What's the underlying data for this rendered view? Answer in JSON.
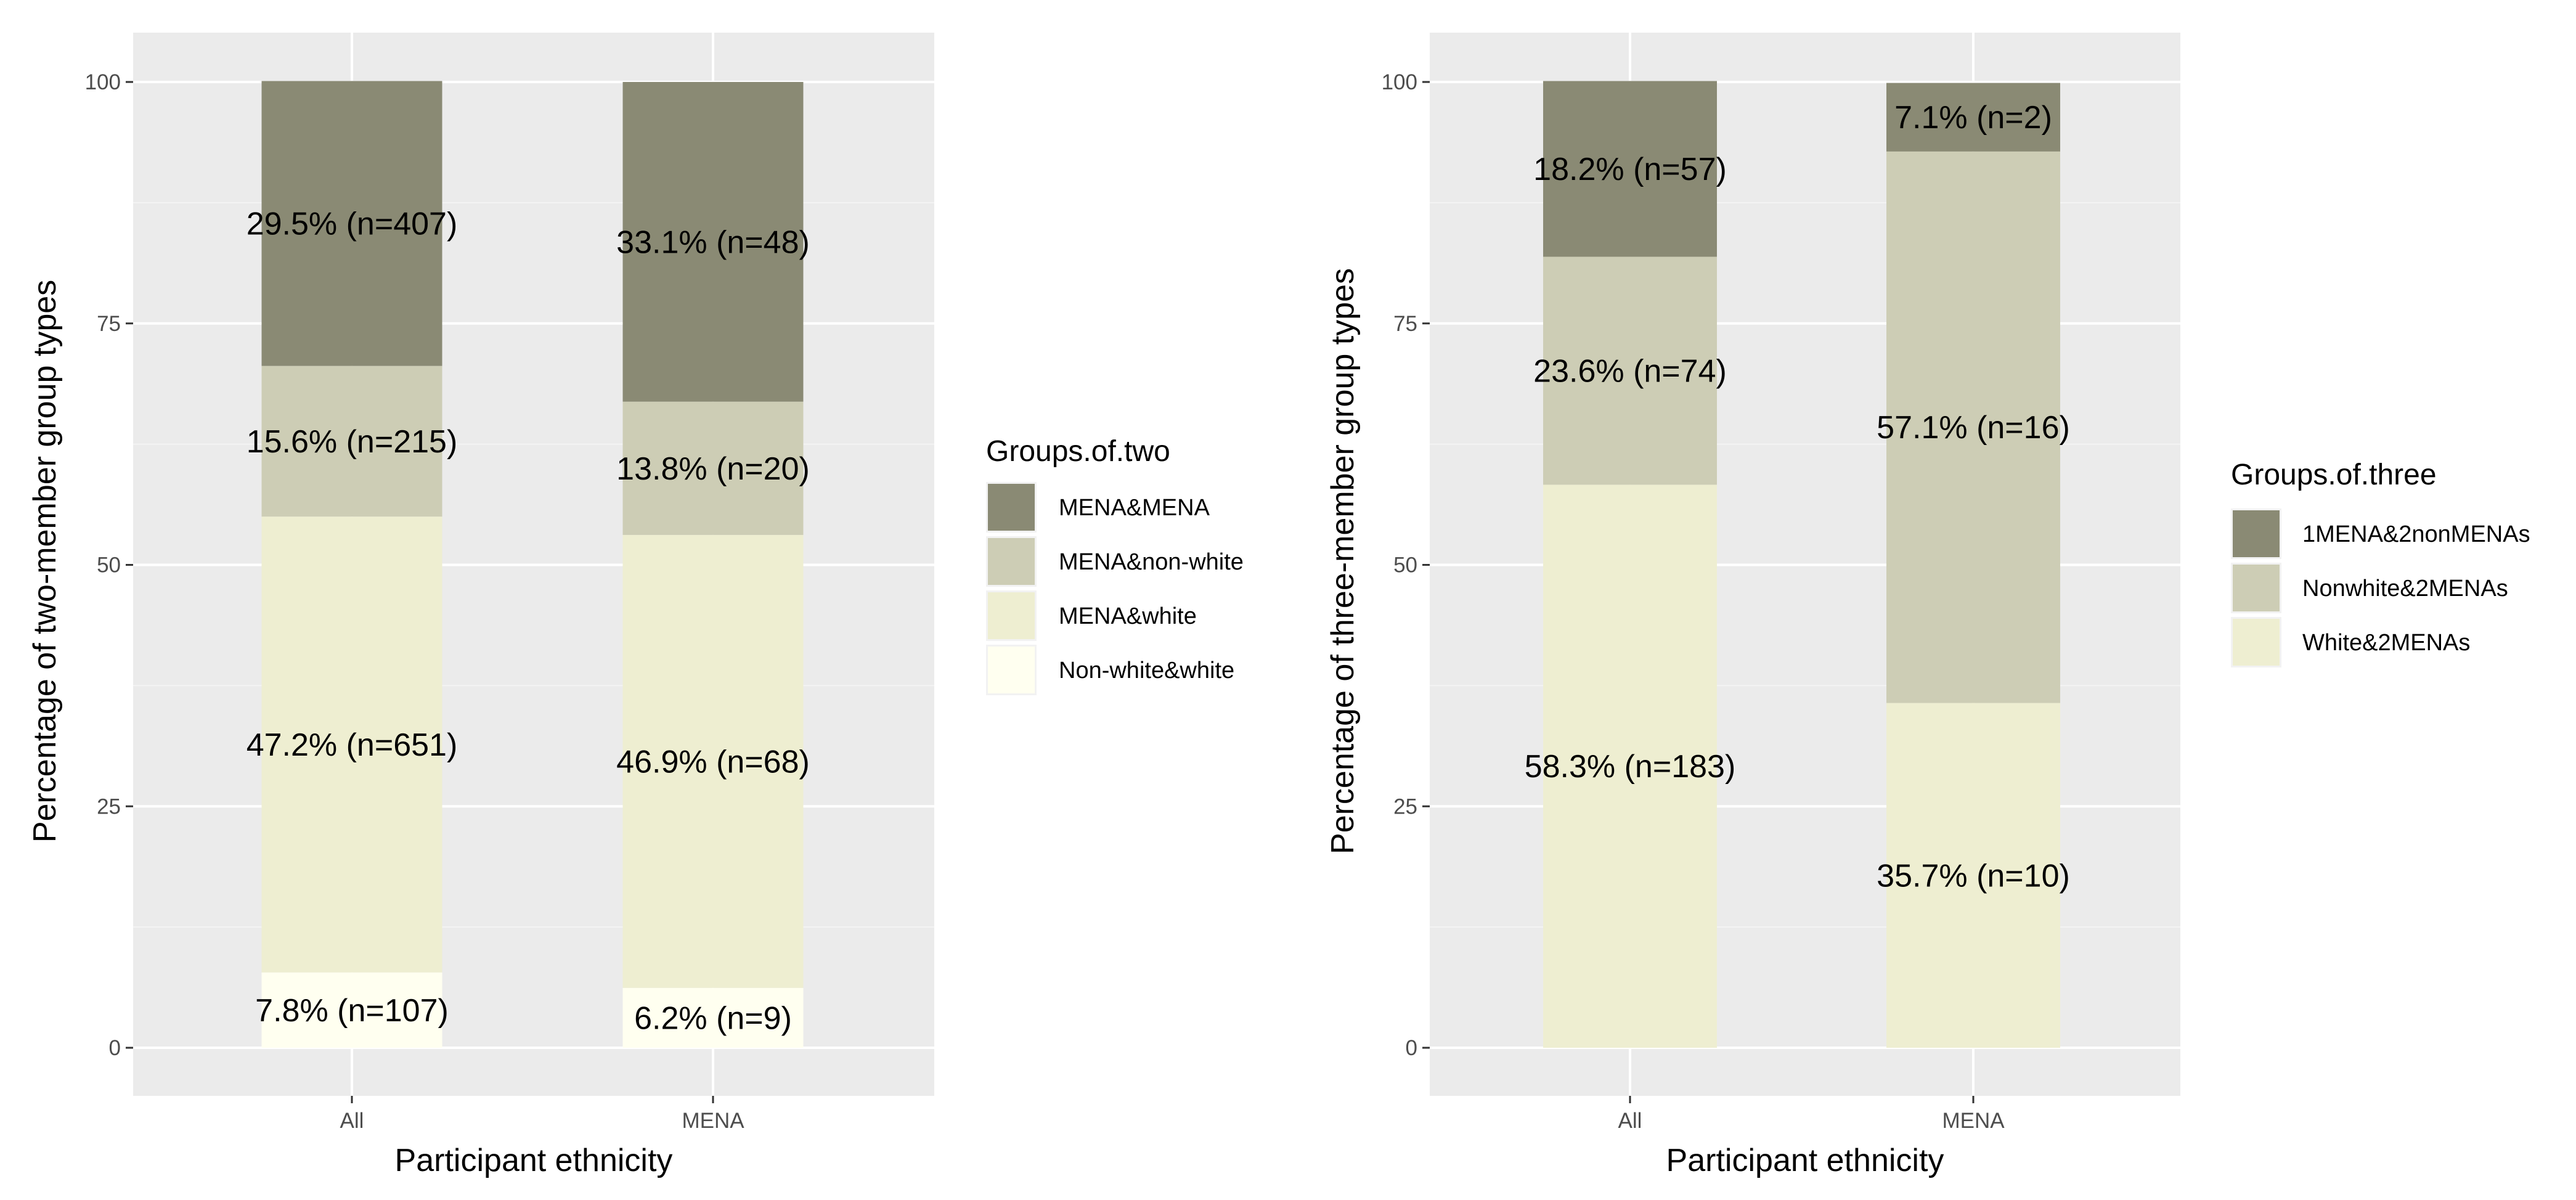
{
  "chart_data": [
    {
      "type": "bar",
      "stacked": true,
      "categories": [
        "All",
        "MENA"
      ],
      "xlabel": "Participant ethnicity",
      "ylabel": "Percentage of two-member group types",
      "ylim": [
        0,
        105
      ],
      "yticks": [
        0,
        25,
        50,
        75,
        100
      ],
      "legend_title": "Groups.of.two",
      "series": [
        {
          "name": "MENA&MENA",
          "color": "#8a8a74",
          "values": [
            29.5,
            33.1
          ],
          "labels": [
            "29.5% (n=407)",
            "33.1% (n=48)"
          ]
        },
        {
          "name": "MENA&non-white",
          "color": "#cdcdb5",
          "values": [
            15.6,
            13.8
          ],
          "labels": [
            "15.6% (n=215)",
            "13.8% (n=20)"
          ]
        },
        {
          "name": "MENA&white",
          "color": "#eeeed1",
          "values": [
            47.2,
            46.9
          ],
          "labels": [
            "47.2% (n=651)",
            "46.9% (n=68)"
          ]
        },
        {
          "name": "Non-white&white",
          "color": "#fffff0",
          "values": [
            7.8,
            6.2
          ],
          "labels": [
            "7.8% (n=107)",
            "6.2% (n=9)"
          ]
        }
      ]
    },
    {
      "type": "bar",
      "stacked": true,
      "categories": [
        "All",
        "MENA"
      ],
      "xlabel": "Participant ethnicity",
      "ylabel": "Percentage of three-member group types",
      "ylim": [
        0,
        105
      ],
      "yticks": [
        0,
        25,
        50,
        75,
        100
      ],
      "legend_title": "Groups.of.three",
      "series": [
        {
          "name": "1MENA&2nonMENAs",
          "color": "#8a8a74",
          "values": [
            18.2,
            7.1
          ],
          "labels": [
            "18.2% (n=57)",
            "7.1% (n=2)"
          ]
        },
        {
          "name": "Nonwhite&2MENAs",
          "color": "#cdcdb5",
          "values": [
            23.6,
            57.1
          ],
          "labels": [
            "23.6% (n=74)",
            "57.1% (n=16)"
          ]
        },
        {
          "name": "White&2MENAs",
          "color": "#eeeed1",
          "values": [
            58.3,
            35.7
          ],
          "labels": [
            "58.3% (n=183)",
            "35.7% (n=10)"
          ]
        }
      ]
    }
  ]
}
